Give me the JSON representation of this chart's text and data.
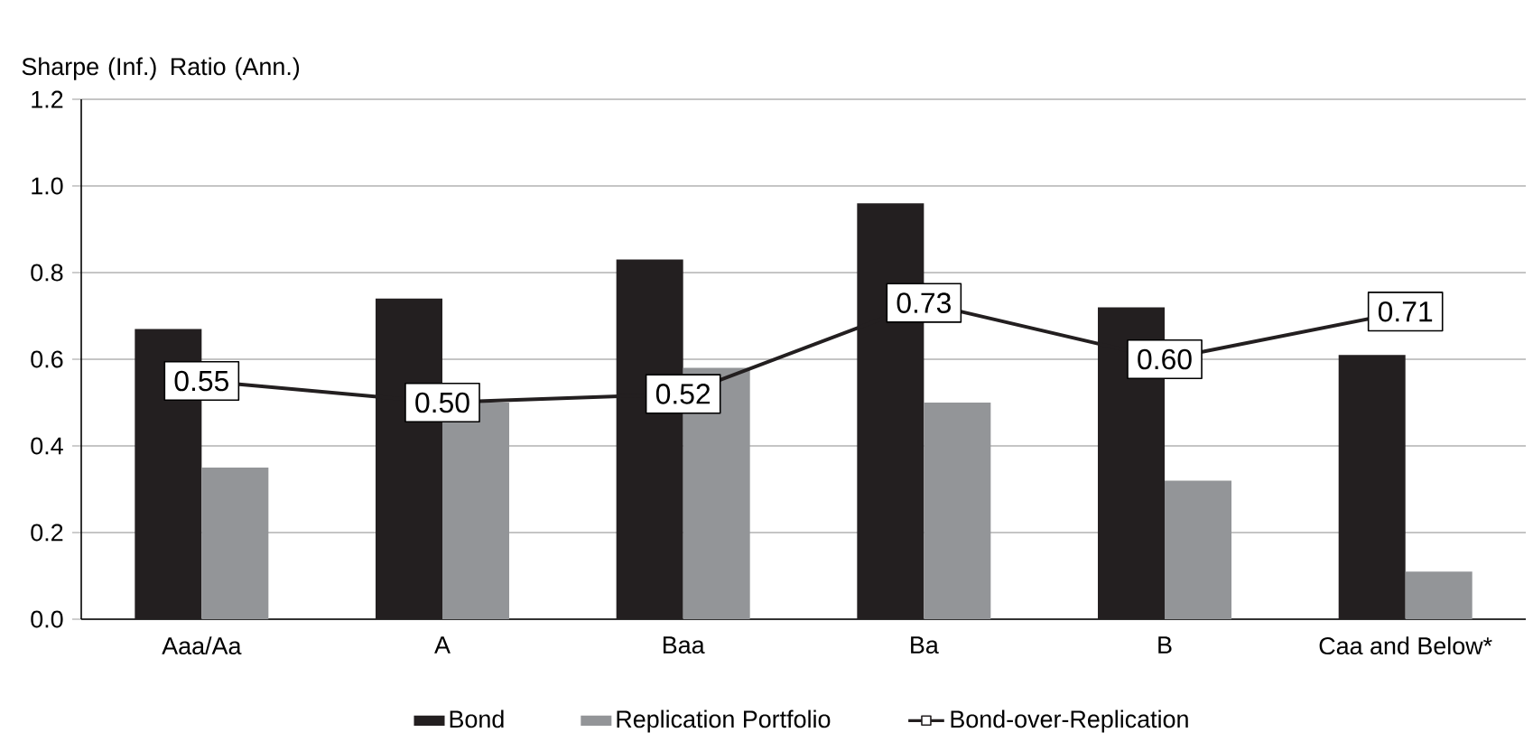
{
  "chart_data": {
    "type": "bar",
    "ylabel": "Sharpe (Inf.) Ratio (Ann.)",
    "categories": [
      "Aaa/Aa",
      "A",
      "Baa",
      "Ba",
      "B",
      "Caa and Below*"
    ],
    "series": [
      {
        "name": "Bond",
        "color": "#231f20",
        "values": [
          0.67,
          0.74,
          0.83,
          0.96,
          0.72,
          0.61
        ]
      },
      {
        "name": "Replication Portfolio",
        "color": "#939598",
        "values": [
          0.35,
          0.5,
          0.58,
          0.5,
          0.32,
          0.11
        ]
      },
      {
        "name": "Bond-over-Replication",
        "type": "line",
        "color": "#231f20",
        "marker": "square",
        "values": [
          0.55,
          0.5,
          0.52,
          0.73,
          0.6,
          0.71
        ],
        "value_labels": [
          "0.55",
          "0.50",
          "0.52",
          "0.73",
          "0.60",
          "0.71"
        ]
      }
    ],
    "ylim": [
      0,
      1.2
    ],
    "yticks": [
      {
        "value": 0,
        "label": "0.0"
      },
      {
        "value": 0.2,
        "label": "0.2"
      },
      {
        "value": 0.4,
        "label": "0.4"
      },
      {
        "value": 0.6,
        "label": "0.6"
      },
      {
        "value": 0.8,
        "label": "0.8"
      },
      {
        "value": 1.0,
        "label": "1.0"
      },
      {
        "value": 1.2,
        "label": "1.2"
      }
    ],
    "grid": "y",
    "legend": "bottom"
  }
}
